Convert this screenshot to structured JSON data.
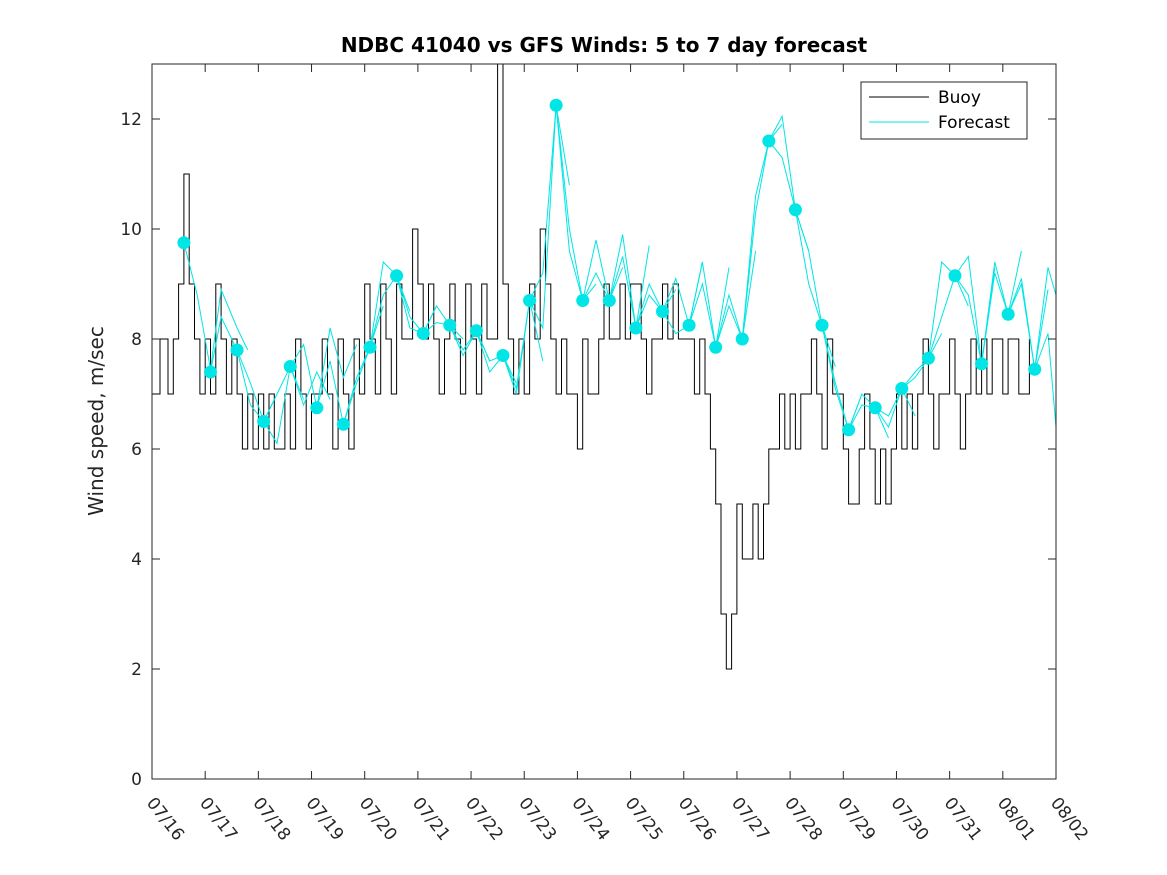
{
  "chart_data": {
    "type": "line",
    "title": "NDBC 41040 vs GFS Winds: 5 to 7 day forecast",
    "ylabel": "Wind speed, m/sec",
    "xlabel": "",
    "xlim": [
      "07/16",
      "08/02"
    ],
    "ylim": [
      0,
      13
    ],
    "x_tick_labels": [
      "07/16",
      "07/17",
      "07/18",
      "07/19",
      "07/20",
      "07/21",
      "07/22",
      "07/23",
      "07/24",
      "07/25",
      "07/26",
      "07/27",
      "07/28",
      "07/29",
      "07/30",
      "07/31",
      "08/01",
      "08/02"
    ],
    "y_ticks": [
      0,
      2,
      4,
      6,
      8,
      10,
      12
    ],
    "legend": {
      "placement": "top-right",
      "entries": [
        "Buoy",
        "Forecast"
      ]
    },
    "colors": {
      "buoy": "#000000",
      "forecast": "#00e5e5",
      "axis": "#262626"
    },
    "buoy": {
      "name": "Buoy",
      "x_days": [
        0,
        0.15,
        0.3,
        0.4,
        0.5,
        0.6,
        0.7,
        0.8,
        0.9,
        1.0,
        1.1,
        1.2,
        1.3,
        1.4,
        1.5,
        1.6,
        1.7,
        1.8,
        1.9,
        2.0,
        2.1,
        2.2,
        2.3,
        2.4,
        2.5,
        2.6,
        2.7,
        2.8,
        2.9,
        3.0,
        3.1,
        3.2,
        3.3,
        3.4,
        3.5,
        3.6,
        3.7,
        3.8,
        3.9,
        4.0,
        4.1,
        4.2,
        4.3,
        4.4,
        4.5,
        4.6,
        4.7,
        4.8,
        4.9,
        5.0,
        5.1,
        5.2,
        5.3,
        5.4,
        5.5,
        5.6,
        5.7,
        5.8,
        5.9,
        6.0,
        6.1,
        6.2,
        6.3,
        6.4,
        6.5,
        6.6,
        6.7,
        6.8,
        6.9,
        7.0,
        7.1,
        7.2,
        7.3,
        7.4,
        7.5,
        7.6,
        7.7,
        7.8,
        7.9,
        8.0,
        8.1,
        8.2,
        8.3,
        8.4,
        8.5,
        8.6,
        8.7,
        8.8,
        8.9,
        9.0,
        9.1,
        9.2,
        9.3,
        9.4,
        9.5,
        9.6,
        9.7,
        9.8,
        9.9,
        10.0,
        10.1,
        10.2,
        10.3,
        10.4,
        10.5,
        10.6,
        10.7,
        10.8,
        10.9,
        11.0,
        11.1,
        11.2,
        11.3,
        11.4,
        11.5,
        11.6,
        11.7,
        11.8,
        11.9,
        12.0,
        12.1,
        12.2,
        12.3,
        12.4,
        12.5,
        12.6,
        12.7,
        12.8,
        12.9,
        13.0,
        13.1,
        13.2,
        13.3,
        13.4,
        13.5,
        13.6,
        13.7,
        13.8,
        13.9,
        14.0,
        14.1,
        14.2,
        14.3,
        14.4,
        14.5,
        14.6,
        14.7,
        14.8,
        14.9,
        15.0,
        15.1,
        15.2,
        15.3,
        15.4,
        15.5,
        15.6,
        15.7,
        15.8,
        15.9,
        16.0,
        16.1,
        16.2,
        16.3,
        16.4,
        16.5
      ],
      "values": [
        7,
        8,
        7,
        8,
        9,
        11,
        9,
        8,
        7,
        8,
        7,
        9,
        8,
        7,
        8,
        7,
        6,
        7,
        6,
        7,
        6,
        7,
        6,
        6,
        7,
        6,
        8,
        7,
        6,
        7,
        7,
        8,
        7,
        6,
        8,
        7,
        6,
        8,
        7,
        9,
        8,
        7,
        9,
        8,
        7,
        9,
        8,
        8,
        10,
        9,
        8,
        9,
        8,
        7,
        8,
        9,
        8,
        7,
        9,
        8,
        7,
        9,
        8,
        8,
        13,
        9,
        8,
        7,
        8,
        7,
        9,
        8,
        10,
        9,
        8,
        7,
        8,
        7,
        7,
        6,
        8,
        7,
        7,
        8,
        9,
        8,
        8,
        9,
        8,
        9,
        9,
        8,
        7,
        8,
        8,
        9,
        8,
        9,
        8,
        8,
        8,
        7,
        8,
        7,
        6,
        5,
        3,
        2,
        3,
        5,
        4,
        4,
        5,
        4,
        5,
        6,
        6,
        7,
        6,
        7,
        6,
        7,
        7,
        8,
        7,
        6,
        8,
        7,
        7,
        6,
        5,
        5,
        6,
        7,
        6,
        5,
        6,
        5,
        6,
        7,
        6,
        7,
        6,
        7,
        8,
        7,
        6,
        7,
        7,
        8,
        7,
        6,
        7,
        8,
        7,
        8,
        7,
        8,
        8,
        7,
        8,
        8,
        7,
        7,
        8
      ]
    },
    "forecast": {
      "name": "Forecast",
      "runs": [
        {
          "x_days": [
            0.6,
            0.85,
            1.1,
            1.3,
            1.6,
            1.8
          ],
          "values": [
            9.75,
            8.8,
            7.45,
            8.9,
            8.2,
            7.8
          ]
        },
        {
          "x_days": [
            1.1,
            1.3,
            1.6,
            1.85,
            2.1,
            2.3
          ],
          "values": [
            7.4,
            8.4,
            7.8,
            6.8,
            6.5,
            6.9
          ]
        },
        {
          "x_days": [
            1.6,
            1.85,
            2.1,
            2.35,
            2.6,
            2.85
          ],
          "values": [
            7.8,
            7.2,
            6.5,
            6.1,
            7.5,
            6.9
          ]
        },
        {
          "x_days": [
            2.1,
            2.35,
            2.6,
            2.85,
            3.1,
            3.35
          ],
          "values": [
            6.5,
            7.0,
            7.5,
            6.8,
            7.4,
            6.9
          ]
        },
        {
          "x_days": [
            2.6,
            2.85,
            3.1,
            3.35,
            3.6,
            3.85
          ],
          "values": [
            7.5,
            7.9,
            6.75,
            8.2,
            7.3,
            7.9
          ]
        },
        {
          "x_days": [
            3.1,
            3.35,
            3.6,
            3.85,
            4.1,
            4.35
          ],
          "values": [
            6.75,
            7.6,
            6.45,
            7.3,
            7.85,
            8.6
          ]
        },
        {
          "x_days": [
            3.6,
            3.85,
            4.1,
            4.35,
            4.6,
            4.85
          ],
          "values": [
            6.45,
            7.2,
            7.85,
            8.8,
            9.15,
            8.5
          ]
        },
        {
          "x_days": [
            4.1,
            4.35,
            4.6,
            4.85,
            5.1,
            5.35
          ],
          "values": [
            7.85,
            9.4,
            9.15,
            8.2,
            8.1,
            8.6
          ]
        },
        {
          "x_days": [
            4.6,
            4.85,
            5.1,
            5.35,
            5.6,
            5.85
          ],
          "values": [
            9.15,
            8.4,
            8.1,
            8.6,
            8.25,
            8.0
          ]
        },
        {
          "x_days": [
            5.1,
            5.35,
            5.6,
            5.85,
            6.1,
            6.35
          ],
          "values": [
            8.1,
            8.3,
            8.25,
            7.7,
            8.15,
            7.6
          ]
        },
        {
          "x_days": [
            5.6,
            5.85,
            6.1,
            6.35,
            6.6,
            6.85
          ],
          "values": [
            8.25,
            7.8,
            8.15,
            7.4,
            7.7,
            7.2
          ]
        },
        {
          "x_days": [
            6.1,
            6.35,
            6.6,
            6.85,
            7.1,
            7.35
          ],
          "values": [
            8.15,
            7.6,
            7.7,
            7.1,
            8.7,
            7.6
          ]
        },
        {
          "x_days": [
            6.6,
            6.85,
            7.1,
            7.35,
            7.6,
            7.85
          ],
          "values": [
            7.7,
            7.0,
            8.7,
            8.2,
            12.25,
            10.8
          ]
        },
        {
          "x_days": [
            7.1,
            7.35,
            7.6,
            7.85,
            8.1,
            8.35
          ],
          "values": [
            8.7,
            9.2,
            12.25,
            10.0,
            8.7,
            9.0
          ]
        },
        {
          "x_days": [
            7.6,
            7.85,
            8.1,
            8.35,
            8.6,
            8.85
          ],
          "values": [
            12.25,
            9.6,
            8.7,
            9.8,
            8.7,
            9.3
          ]
        },
        {
          "x_days": [
            8.1,
            8.35,
            8.6,
            8.85,
            9.1,
            9.35
          ],
          "values": [
            8.7,
            9.2,
            8.7,
            9.5,
            8.2,
            9.7
          ]
        },
        {
          "x_days": [
            8.6,
            8.85,
            9.1,
            9.35,
            9.6,
            9.85
          ],
          "values": [
            8.7,
            9.9,
            8.2,
            8.8,
            8.5,
            8.9
          ]
        },
        {
          "x_days": [
            9.1,
            9.35,
            9.6,
            9.85,
            10.1,
            10.35
          ],
          "values": [
            8.2,
            9.0,
            8.5,
            8.1,
            8.25,
            9.4
          ]
        },
        {
          "x_days": [
            9.6,
            9.85,
            10.1,
            10.35,
            10.6,
            10.85
          ],
          "values": [
            8.5,
            9.1,
            8.25,
            9.0,
            7.85,
            9.3
          ]
        },
        {
          "x_days": [
            10.1,
            10.35,
            10.6,
            10.85,
            11.1,
            11.35
          ],
          "values": [
            8.25,
            9.4,
            7.85,
            8.8,
            8.0,
            9.6
          ]
        },
        {
          "x_days": [
            10.6,
            10.85,
            11.1,
            11.35,
            11.6,
            11.85
          ],
          "values": [
            7.85,
            8.6,
            8.0,
            10.3,
            11.6,
            11.9
          ]
        },
        {
          "x_days": [
            11.1,
            11.35,
            11.6,
            11.85,
            12.1,
            12.35
          ],
          "values": [
            8.0,
            10.6,
            11.6,
            11.3,
            10.35,
            9.6
          ]
        },
        {
          "x_days": [
            11.6,
            11.85,
            12.1,
            12.35,
            12.6,
            12.85
          ],
          "values": [
            11.6,
            12.05,
            10.35,
            9.0,
            8.25,
            7.5
          ]
        },
        {
          "x_days": [
            12.1,
            12.35,
            12.6,
            12.85,
            13.1,
            13.35
          ],
          "values": [
            10.35,
            9.6,
            8.25,
            7.1,
            6.35,
            7.0
          ]
        },
        {
          "x_days": [
            12.6,
            12.85,
            13.1,
            13.35,
            13.6,
            13.85
          ],
          "values": [
            8.25,
            7.2,
            6.35,
            6.8,
            6.75,
            6.2
          ]
        },
        {
          "x_days": [
            13.1,
            13.35,
            13.6,
            13.85,
            14.1,
            14.35
          ],
          "values": [
            6.35,
            7.0,
            6.75,
            6.4,
            7.1,
            6.6
          ]
        },
        {
          "x_days": [
            13.6,
            13.85,
            14.1,
            14.35,
            14.6,
            14.85
          ],
          "values": [
            6.75,
            6.6,
            7.1,
            7.3,
            7.65,
            8.1
          ]
        },
        {
          "x_days": [
            14.1,
            14.35,
            14.6,
            14.85,
            15.1,
            15.35
          ],
          "values": [
            7.1,
            7.4,
            7.65,
            8.4,
            9.15,
            8.6
          ]
        },
        {
          "x_days": [
            14.6,
            14.85,
            15.1,
            15.35,
            15.6,
            15.85
          ],
          "values": [
            7.65,
            9.4,
            9.15,
            8.8,
            7.55,
            9.3
          ]
        },
        {
          "x_days": [
            15.1,
            15.35,
            15.6,
            15.85,
            16.1,
            16.35
          ],
          "values": [
            9.15,
            9.5,
            7.55,
            9.4,
            8.45,
            9.6
          ]
        },
        {
          "x_days": [
            15.6,
            15.85,
            16.1,
            16.35,
            16.6,
            16.85
          ],
          "values": [
            7.55,
            9.2,
            8.45,
            9.0,
            7.45,
            8.9
          ]
        },
        {
          "x_days": [
            16.1,
            16.35,
            16.6,
            16.85,
            17.0
          ],
          "values": [
            8.45,
            9.1,
            7.45,
            9.3,
            8.8
          ]
        },
        {
          "x_days": [
            16.6,
            16.85,
            17.0
          ],
          "values": [
            7.45,
            8.1,
            6.4
          ]
        }
      ],
      "markers": {
        "x_days": [
          0.6,
          1.1,
          1.6,
          2.1,
          2.6,
          3.1,
          3.6,
          4.1,
          4.6,
          5.1,
          5.6,
          6.1,
          6.6,
          7.1,
          7.6,
          8.1,
          8.6,
          9.1,
          9.6,
          10.1,
          10.6,
          11.1,
          11.6,
          12.1,
          12.6,
          13.1,
          13.6,
          14.1,
          14.6,
          15.1,
          15.6,
          16.1,
          16.6
        ],
        "values": [
          9.75,
          7.4,
          7.8,
          6.5,
          7.5,
          6.75,
          6.45,
          7.85,
          9.15,
          8.1,
          8.25,
          8.15,
          7.7,
          8.7,
          12.25,
          8.7,
          8.7,
          8.2,
          8.5,
          8.25,
          7.85,
          8.0,
          11.6,
          10.35,
          8.25,
          6.35,
          6.75,
          7.1,
          7.65,
          9.15,
          7.55,
          8.45,
          7.45
        ]
      }
    }
  }
}
